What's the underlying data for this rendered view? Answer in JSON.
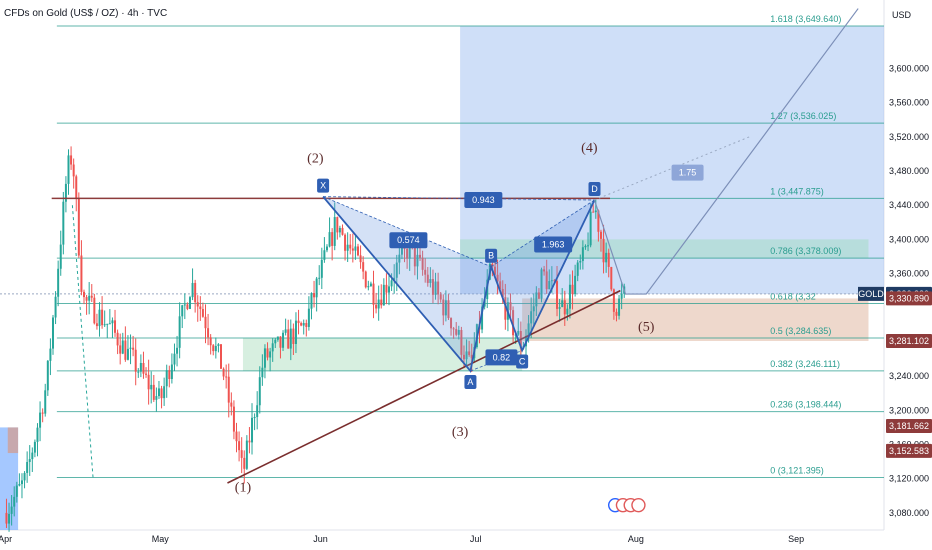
{
  "header": {
    "title": "CFDs on Gold (US$ / OZ) · 4h · TVC",
    "currency": "USD"
  },
  "chart_data": {
    "type": "line",
    "symbol": "GOLD",
    "timeframe": "4h",
    "ylim": [
      3060,
      3680
    ],
    "x_ticks": [
      {
        "label": "Apr",
        "t": 0
      },
      {
        "label": "May",
        "t": 30
      },
      {
        "label": "Jun",
        "t": 61
      },
      {
        "label": "Jul",
        "t": 91
      },
      {
        "label": "Aug",
        "t": 122
      },
      {
        "label": "Sep",
        "t": 153
      }
    ],
    "x_range": [
      -1,
      170
    ],
    "y_ticks": [
      {
        "label": "3,600.000",
        "v": 3600
      },
      {
        "label": "3,560.000",
        "v": 3560
      },
      {
        "label": "3,520.000",
        "v": 3520
      },
      {
        "label": "3,480.000",
        "v": 3480
      },
      {
        "label": "3,440.000",
        "v": 3440
      },
      {
        "label": "3,400.000",
        "v": 3400
      },
      {
        "label": "3,360.000",
        "v": 3360
      },
      {
        "label": "3,240.000",
        "v": 3240
      },
      {
        "label": "3,200.000",
        "v": 3200
      },
      {
        "label": "3,160.000",
        "v": 3160
      },
      {
        "label": "3,120.000",
        "v": 3120
      },
      {
        "label": "3,080.000",
        "v": 3080
      }
    ],
    "fib_levels": [
      {
        "label": "1.618 (3,649.640)",
        "v": 3649.64
      },
      {
        "label": "1.27 (3,536.025)",
        "v": 3536.025
      },
      {
        "label": "1 (3,447.875)",
        "v": 3447.875
      },
      {
        "label": "0.786 (3,378.009)",
        "v": 3378.009
      },
      {
        "label": "0.618 (3,32",
        "v": 3325
      },
      {
        "label": "0.5 (3,284.635)",
        "v": 3284.635
      },
      {
        "label": "0.382 (3,246.111)",
        "v": 3246.111
      },
      {
        "label": "0.236 (3,198.444)",
        "v": 3198.444
      },
      {
        "label": "0 (3,121.395)",
        "v": 3121.395
      }
    ],
    "price_badges": [
      {
        "label": "GOLD",
        "value": "3,336.220",
        "v": 3336.22,
        "color": "#1f3b63"
      },
      {
        "label": "",
        "value": "3,330.890",
        "v": 3330.89,
        "color": "#8e3b3b"
      },
      {
        "label": "",
        "value": "3,281.102",
        "v": 3281.102,
        "color": "#8e3b3b"
      },
      {
        "label": "",
        "value": "3,181.662",
        "v": 3181.662,
        "color": "#8e3b3b"
      },
      {
        "label": "",
        "value": "3,152.583",
        "v": 3152.583,
        "color": "#8e3b3b"
      }
    ],
    "harmonic": {
      "points": [
        {
          "label": "X",
          "t": 61.5,
          "v": 3450
        },
        {
          "label": "A",
          "t": 90,
          "v": 3246
        },
        {
          "label": "B",
          "t": 94,
          "v": 3368
        },
        {
          "label": "C",
          "t": 100,
          "v": 3270
        },
        {
          "label": "D",
          "t": 114,
          "v": 3446
        }
      ],
      "ratios": [
        {
          "label": "0.943",
          "t": 92.5,
          "v": 3446
        },
        {
          "label": "0.574",
          "t": 78,
          "v": 3399
        },
        {
          "label": "1.963",
          "t": 106,
          "v": 3394
        },
        {
          "label": "0.82",
          "t": 96,
          "v": 3262
        },
        {
          "label": "1.75",
          "t": 132,
          "v": 3478
        }
      ]
    },
    "waves": [
      {
        "label": "(1)",
        "t": 46,
        "v": 3105
      },
      {
        "label": "(2)",
        "t": 60,
        "v": 3490
      },
      {
        "label": "(3)",
        "t": 88,
        "v": 3170
      },
      {
        "label": "(4)",
        "t": 113,
        "v": 3502
      },
      {
        "label": "(5)",
        "t": 124,
        "v": 3293
      }
    ],
    "colors": {
      "fib_line": "#2a9d8f",
      "resistance": "#8e3b3b",
      "trendline": "#7a2e2e",
      "harmonic": "#2f5fb3",
      "target_box": "#a7c4f2",
      "up_candle": "#26a69a",
      "down_candle": "#ef5350"
    }
  }
}
